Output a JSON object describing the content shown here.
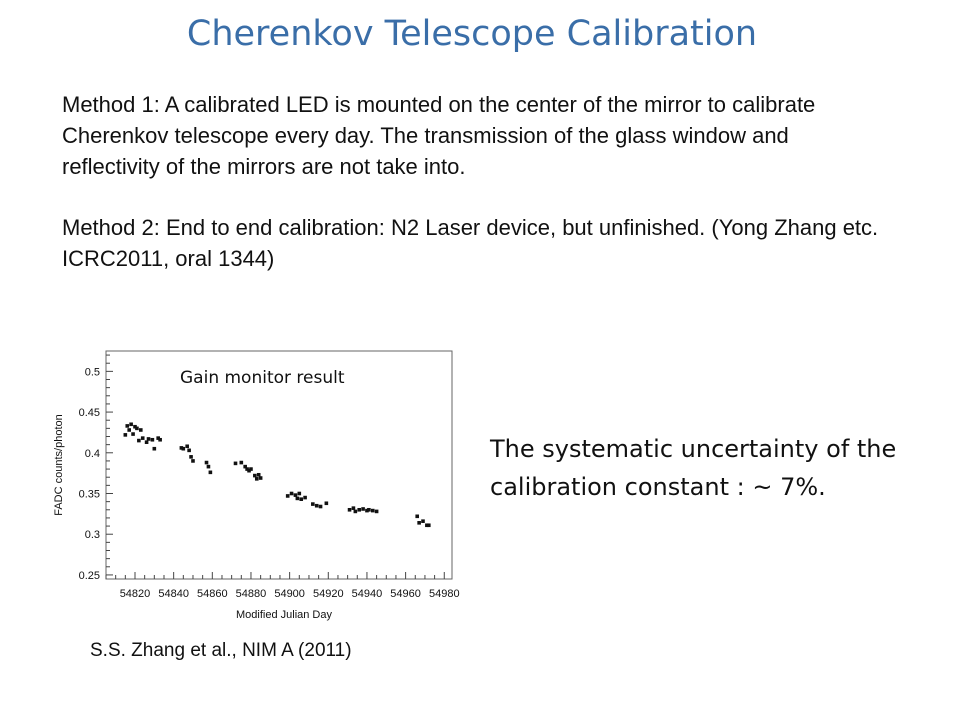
{
  "slide": {
    "title": "Cherenkov Telescope Calibration",
    "method1": "Method 1: A calibrated LED is mounted on the center of the mirror to calibrate Cherenkov telescope every day. The transmission of the glass window and reflectivity of the mirrors are not take into.",
    "method2": "Method 2: End to end calibration: N2 Laser device, but unfinished. (Yong Zhang etc. ICRC2011, oral 1344)",
    "summary": "The systematic uncertainty of the calibration constant : ~ 7%.",
    "citation": "S.S. Zhang et al., NIM A (2011)"
  },
  "chart_data": {
    "type": "scatter",
    "title": "Gain monitor result",
    "xlabel": "Modified Julian Day",
    "ylabel": "FADC counts/photon",
    "xlim": [
      54805,
      54984
    ],
    "ylim": [
      0.245,
      0.525
    ],
    "xticks": [
      54820,
      54840,
      54860,
      54880,
      54900,
      54920,
      54940,
      54960,
      54980
    ],
    "yticks": [
      0.25,
      0.3,
      0.35,
      0.4,
      0.45,
      0.5
    ],
    "ytick_labels": [
      "0.25",
      "0.3",
      "0.35",
      "0.4",
      "0.45",
      "0.5"
    ],
    "marker_color": "#111111",
    "series": [
      {
        "x": [
          54815,
          54816,
          54817,
          54818,
          54819,
          54820,
          54821,
          54822,
          54823,
          54824,
          54826,
          54827,
          54829,
          54830,
          54832,
          54833,
          54844,
          54845,
          54847,
          54848,
          54849,
          54850,
          54857,
          54858,
          54859,
          54872,
          54875,
          54877,
          54878,
          54879,
          54880,
          54882,
          54883,
          54884,
          54885,
          54899,
          54901,
          54903,
          54904,
          54905,
          54906,
          54908,
          54912,
          54914,
          54916,
          54919,
          54931,
          54933,
          54934,
          54936,
          54938,
          54940,
          54941,
          54943,
          54945,
          54966,
          54967,
          54969,
          54971,
          54972
        ],
        "y": [
          0.422,
          0.433,
          0.428,
          0.435,
          0.423,
          0.432,
          0.43,
          0.415,
          0.428,
          0.418,
          0.413,
          0.417,
          0.416,
          0.405,
          0.418,
          0.416,
          0.406,
          0.405,
          0.408,
          0.403,
          0.395,
          0.39,
          0.388,
          0.383,
          0.376,
          0.387,
          0.388,
          0.383,
          0.38,
          0.378,
          0.38,
          0.372,
          0.368,
          0.373,
          0.369,
          0.347,
          0.35,
          0.348,
          0.344,
          0.35,
          0.343,
          0.345,
          0.337,
          0.335,
          0.334,
          0.338,
          0.33,
          0.332,
          0.328,
          0.33,
          0.331,
          0.329,
          0.33,
          0.329,
          0.328,
          0.322,
          0.314,
          0.316,
          0.311,
          0.311
        ]
      }
    ]
  }
}
